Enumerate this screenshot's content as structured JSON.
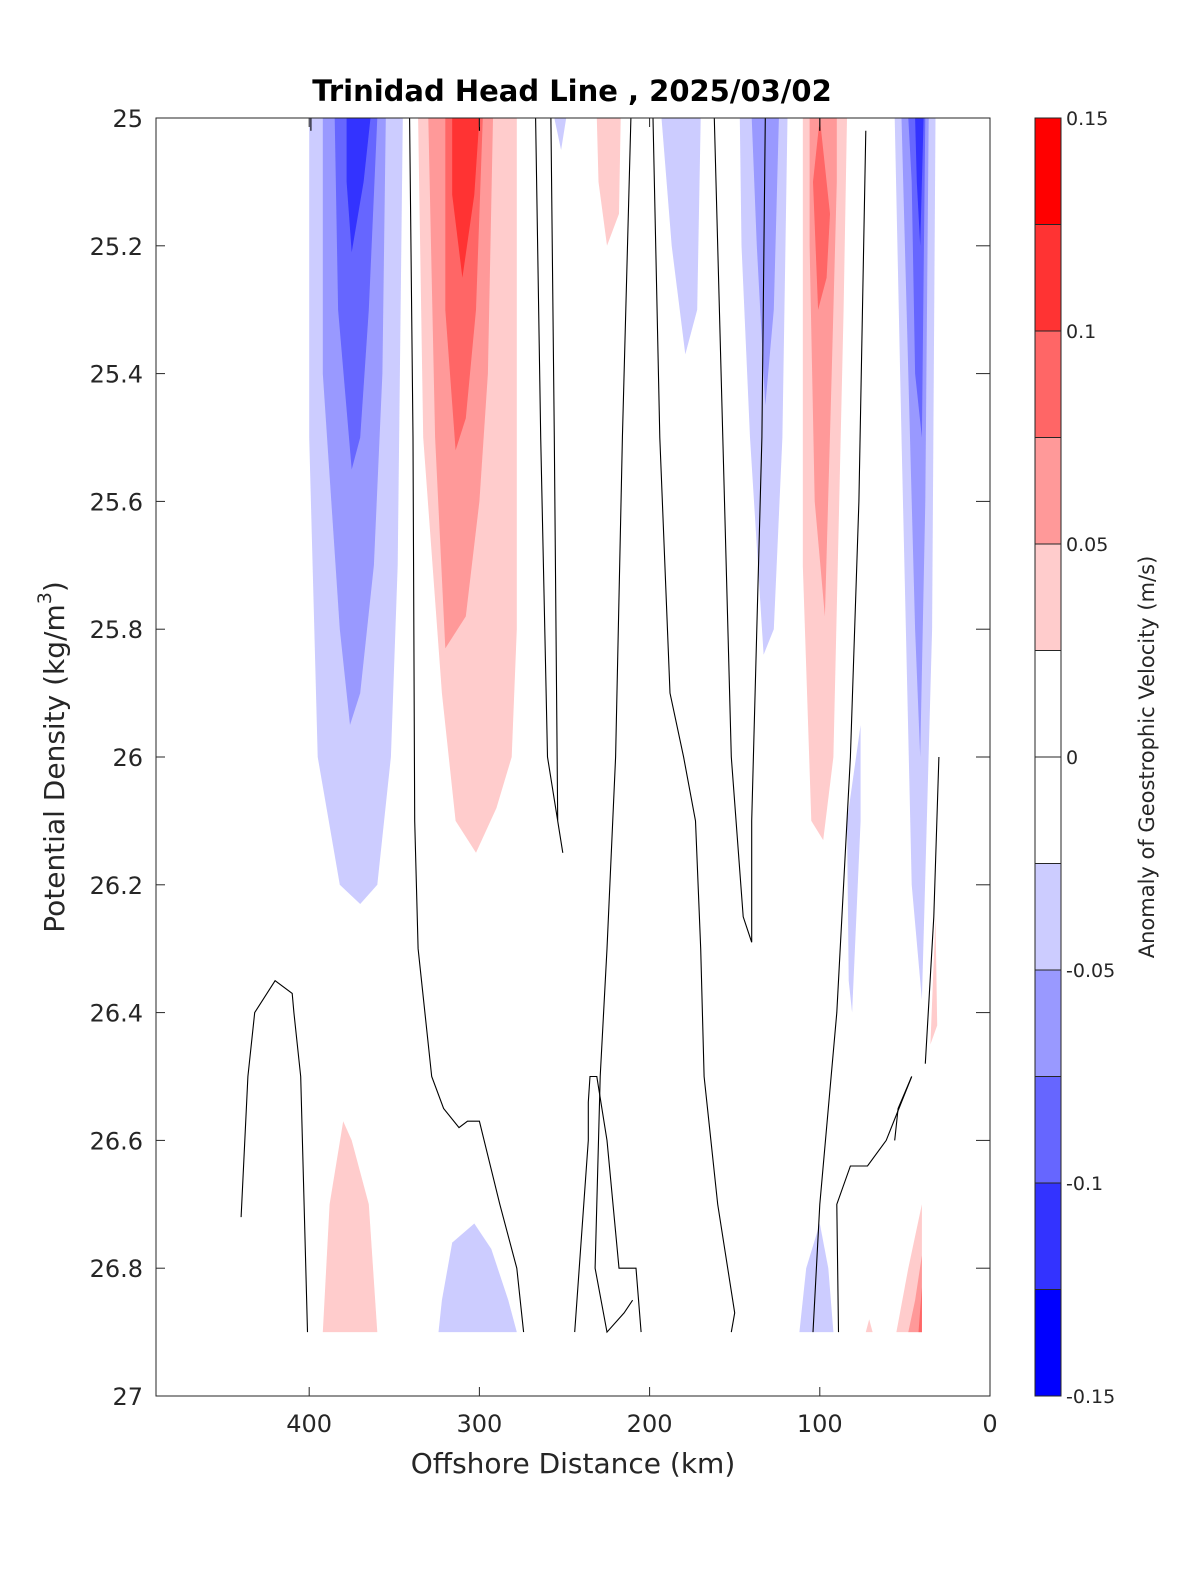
{
  "chart_data": {
    "type": "contourf",
    "title": "Trinidad Head Line , 2025/03/02",
    "xlabel": "Offshore Distance (km)",
    "ylabel": "Potential Density (kg/m³)",
    "ylabel_base": "Potential Density (kg/m",
    "ylabel_sup": "3",
    "ylabel_end": ")",
    "xlim": [
      490,
      0
    ],
    "ylim": [
      27,
      25
    ],
    "x_reversed": true,
    "y_reversed": true,
    "xticks": [
      400,
      300,
      200,
      100,
      0
    ],
    "xtick_labels": [
      "400",
      "300",
      "200",
      "100",
      "0"
    ],
    "yticks": [
      25,
      25.2,
      25.4,
      25.6,
      25.8,
      26,
      26.2,
      26.4,
      26.6,
      26.8,
      27
    ],
    "ytick_labels": [
      "25",
      "25.2",
      "25.4",
      "25.6",
      "25.8",
      "26",
      "26.2",
      "26.4",
      "26.6",
      "26.8",
      "27"
    ],
    "grid": false,
    "colorbar": {
      "label": "Anomaly of Geostrophic Velocity (m/s)",
      "clim": [
        -0.15,
        0.15
      ],
      "levels": [
        -0.15,
        -0.125,
        -0.1,
        -0.075,
        -0.05,
        -0.025,
        0,
        0.025,
        0.05,
        0.075,
        0.1,
        0.125,
        0.15
      ],
      "ticks": [
        0.15,
        0.1,
        0.05,
        0,
        -0.05,
        -0.1,
        -0.15
      ],
      "tick_labels": [
        "0.15",
        "0.1",
        "0.05",
        "0",
        "-0.05",
        "-0.1",
        "-0.15"
      ],
      "colors": [
        "#0000ff",
        "#3333ff",
        "#6666ff",
        "#9999ff",
        "#ccccff",
        "#ffffff",
        "#ffffff",
        "#ffcccc",
        "#ff9999",
        "#ff6666",
        "#ff3333",
        "#ff0000"
      ],
      "placement": "right"
    },
    "filled_regions": [
      {
        "level": -0.025,
        "color": "#ccccff",
        "pts": [
          [
            400,
            25
          ],
          [
            345,
            25
          ],
          [
            348,
            25.7
          ],
          [
            352,
            26
          ],
          [
            360,
            26.2
          ],
          [
            370,
            26.23
          ],
          [
            382,
            26.2
          ],
          [
            395,
            26
          ],
          [
            400,
            25.5
          ]
        ]
      },
      {
        "level": -0.05,
        "color": "#9999ff",
        "pts": [
          [
            392,
            25
          ],
          [
            355,
            25
          ],
          [
            357,
            25.4
          ],
          [
            362,
            25.7
          ],
          [
            370,
            25.9
          ],
          [
            376,
            25.95
          ],
          [
            382,
            25.8
          ],
          [
            392,
            25.4
          ]
        ]
      },
      {
        "level": -0.075,
        "color": "#6666ff",
        "pts": [
          [
            385,
            25
          ],
          [
            360,
            25
          ],
          [
            365,
            25.3
          ],
          [
            370,
            25.5
          ],
          [
            375,
            25.55
          ],
          [
            383,
            25.3
          ]
        ]
      },
      {
        "level": -0.1,
        "color": "#3333ff",
        "pts": [
          [
            378,
            25
          ],
          [
            364,
            25
          ],
          [
            368,
            25.1
          ],
          [
            375,
            25.21
          ],
          [
            378,
            25.1
          ]
        ]
      },
      {
        "level": 0.025,
        "color": "#ffcccc",
        "pts": [
          [
            336,
            25
          ],
          [
            278,
            25
          ],
          [
            278,
            25.8
          ],
          [
            281,
            26
          ],
          [
            290,
            26.08
          ],
          [
            302,
            26.15
          ],
          [
            314,
            26.1
          ],
          [
            322,
            25.9
          ],
          [
            333,
            25.5
          ]
        ]
      },
      {
        "level": 0.05,
        "color": "#ff9999",
        "pts": [
          [
            330,
            25
          ],
          [
            292,
            25
          ],
          [
            295,
            25.4
          ],
          [
            300,
            25.6
          ],
          [
            308,
            25.78
          ],
          [
            320,
            25.83
          ],
          [
            326,
            25.5
          ]
        ]
      },
      {
        "level": 0.075,
        "color": "#ff6666",
        "pts": [
          [
            320,
            25
          ],
          [
            298,
            25
          ],
          [
            302,
            25.3
          ],
          [
            308,
            25.47
          ],
          [
            314,
            25.52
          ],
          [
            320,
            25.3
          ]
        ]
      },
      {
        "level": 0.1,
        "color": "#ff3333",
        "pts": [
          [
            316,
            25
          ],
          [
            300,
            25
          ],
          [
            303,
            25.12
          ],
          [
            310,
            25.25
          ],
          [
            316,
            25.12
          ]
        ]
      },
      {
        "level": -0.025,
        "color": "#ccccff",
        "pts": [
          [
            256,
            25
          ],
          [
            249,
            25
          ],
          [
            252,
            25.05
          ]
        ]
      },
      {
        "level": 0.025,
        "color": "#ffcccc",
        "pts": [
          [
            231,
            25
          ],
          [
            217,
            25
          ],
          [
            218,
            25.15
          ],
          [
            225,
            25.2
          ],
          [
            230,
            25.1
          ]
        ]
      },
      {
        "level": -0.025,
        "color": "#ccccff",
        "pts": [
          [
            193,
            25
          ],
          [
            170,
            25
          ],
          [
            172,
            25.3
          ],
          [
            179,
            25.37
          ],
          [
            187,
            25.2
          ]
        ]
      },
      {
        "level": -0.025,
        "color": "#ccccff",
        "pts": [
          [
            147,
            25
          ],
          [
            119,
            25
          ],
          [
            122,
            25.5
          ],
          [
            127,
            25.8
          ],
          [
            133,
            25.84
          ],
          [
            141,
            25.5
          ],
          [
            146,
            25.2
          ]
        ]
      },
      {
        "level": -0.05,
        "color": "#9999ff",
        "pts": [
          [
            140,
            25
          ],
          [
            124,
            25
          ],
          [
            127,
            25.3
          ],
          [
            132,
            25.45
          ],
          [
            137,
            25.2
          ]
        ]
      },
      {
        "level": 0.025,
        "color": "#ffcccc",
        "pts": [
          [
            110,
            25
          ],
          [
            84,
            25
          ],
          [
            86,
            25.3
          ],
          [
            92,
            26
          ],
          [
            98,
            26.13
          ],
          [
            105,
            26.1
          ],
          [
            110,
            25.7
          ]
        ]
      },
      {
        "level": 0.05,
        "color": "#ff9999",
        "pts": [
          [
            106,
            25
          ],
          [
            90,
            25
          ],
          [
            90,
            25.1
          ],
          [
            93,
            25.4
          ],
          [
            97,
            25.78
          ],
          [
            103,
            25.6
          ],
          [
            106,
            25.2
          ]
        ]
      },
      {
        "level": 0.075,
        "color": "#ff6666",
        "pts": [
          [
            100,
            25
          ],
          [
            94,
            25.15
          ],
          [
            96,
            25.25
          ],
          [
            101,
            25.3
          ],
          [
            104,
            25.1
          ]
        ]
      },
      {
        "level": -0.025,
        "color": "#ccccff",
        "pts": [
          [
            76,
            25.95
          ],
          [
            84,
            26.1
          ],
          [
            83,
            26.35
          ],
          [
            81,
            26.4
          ],
          [
            76,
            26.1
          ]
        ]
      },
      {
        "level": -0.025,
        "color": "#ccccff",
        "pts": [
          [
            56,
            25
          ],
          [
            32,
            25
          ],
          [
            34,
            25.8
          ],
          [
            40,
            26.38
          ],
          [
            46,
            26.2
          ],
          [
            52,
            25.5
          ]
        ]
      },
      {
        "level": -0.05,
        "color": "#9999ff",
        "pts": [
          [
            52,
            25
          ],
          [
            36,
            25
          ],
          [
            38,
            25.6
          ],
          [
            41,
            26
          ],
          [
            44,
            25.8
          ],
          [
            49,
            25.3
          ]
        ]
      },
      {
        "level": -0.075,
        "color": "#6666ff",
        "pts": [
          [
            48,
            25
          ],
          [
            38,
            25
          ],
          [
            40,
            25.5
          ],
          [
            44,
            25.4
          ],
          [
            46,
            25.1
          ]
        ]
      },
      {
        "level": -0.1,
        "color": "#3333ff",
        "pts": [
          [
            44,
            25
          ],
          [
            39,
            25
          ],
          [
            41,
            25.2
          ],
          [
            43,
            25.1
          ]
        ]
      },
      {
        "level": 0.025,
        "color": "#ffcccc",
        "pts": [
          [
            32,
            26.25
          ],
          [
            35,
            26.45
          ],
          [
            31,
            26.42
          ]
        ]
      },
      {
        "level": 0.025,
        "color": "#ffcccc",
        "pts": [
          [
            392,
            26.9
          ],
          [
            360,
            26.9
          ],
          [
            365,
            26.7
          ],
          [
            375,
            26.6
          ],
          [
            380,
            26.57
          ],
          [
            388,
            26.7
          ]
        ]
      },
      {
        "level": -0.025,
        "color": "#ccccff",
        "pts": [
          [
            324,
            26.9
          ],
          [
            278,
            26.9
          ],
          [
            283,
            26.85
          ],
          [
            293,
            26.77
          ],
          [
            303,
            26.73
          ],
          [
            316,
            26.76
          ],
          [
            322,
            26.85
          ]
        ]
      },
      {
        "level": -0.025,
        "color": "#ccccff",
        "pts": [
          [
            112,
            26.9
          ],
          [
            92,
            26.9
          ],
          [
            95,
            26.8
          ],
          [
            100,
            26.73
          ],
          [
            108,
            26.8
          ]
        ]
      },
      {
        "level": 0.025,
        "color": "#ffcccc",
        "pts": [
          [
            55,
            26.9
          ],
          [
            40,
            26.9
          ],
          [
            40,
            26.7
          ],
          [
            48,
            26.8
          ]
        ]
      },
      {
        "level": 0.05,
        "color": "#ff9999",
        "pts": [
          [
            48,
            26.9
          ],
          [
            40,
            26.9
          ],
          [
            40,
            26.78
          ],
          [
            44,
            26.85
          ]
        ]
      },
      {
        "level": 0.075,
        "color": "#ff6666",
        "pts": [
          [
            42,
            26.9
          ],
          [
            40,
            26.9
          ],
          [
            40,
            26.83
          ]
        ]
      },
      {
        "level": 0.025,
        "color": "#ffcccc",
        "pts": [
          [
            73,
            26.9
          ],
          [
            69,
            26.9
          ],
          [
            71,
            26.88
          ]
        ]
      }
    ],
    "zero_contours": [
      [
        [
          399,
          25
        ],
        [
          399,
          25.02
        ]
      ],
      [
        [
          300,
          25
        ],
        [
          300,
          25.02
        ]
      ],
      [
        [
          100,
          25
        ],
        [
          100,
          25.02
        ]
      ],
      [
        [
          341,
          25
        ],
        [
          339,
          25.5
        ],
        [
          338,
          26.1
        ],
        [
          336,
          26.3
        ],
        [
          328,
          26.5
        ],
        [
          321,
          26.55
        ],
        [
          312,
          26.58
        ],
        [
          307,
          26.57
        ],
        [
          300,
          26.57
        ],
        [
          288,
          26.7
        ],
        [
          278,
          26.8
        ],
        [
          274,
          26.9
        ]
      ],
      [
        [
          267,
          25
        ],
        [
          264,
          25.5
        ],
        [
          260,
          26
        ],
        [
          251,
          26.15
        ],
        [
          254,
          26.1
        ],
        [
          256,
          25.5
        ],
        [
          258,
          25
        ]
      ],
      [
        [
          211,
          25
        ],
        [
          216,
          25.5
        ],
        [
          220,
          26
        ],
        [
          225,
          26.3
        ],
        [
          229,
          26.5
        ],
        [
          232,
          26.8
        ],
        [
          225,
          26.9
        ],
        [
          215,
          26.87
        ],
        [
          210,
          26.85
        ]
      ],
      [
        [
          198,
          25
        ],
        [
          194,
          25.5
        ],
        [
          188,
          25.9
        ],
        [
          180,
          26
        ],
        [
          173,
          26.1
        ],
        [
          170,
          26.3
        ],
        [
          168,
          26.5
        ],
        [
          160,
          26.7
        ],
        [
          150,
          26.87
        ],
        [
          152,
          26.9
        ]
      ],
      [
        [
          162,
          25
        ],
        [
          157,
          25.5
        ],
        [
          152,
          26
        ],
        [
          145,
          26.25
        ],
        [
          140,
          26.29
        ],
        [
          140,
          26.1
        ],
        [
          137,
          25.8
        ],
        [
          134,
          25.5
        ],
        [
          132,
          25
        ]
      ],
      [
        [
          401,
          26.9
        ],
        [
          405,
          26.5
        ],
        [
          409,
          26.4
        ],
        [
          410,
          26.37
        ],
        [
          420,
          26.35
        ],
        [
          432,
          26.4
        ],
        [
          436,
          26.5
        ],
        [
          440,
          26.72
        ]
      ],
      [
        [
          205,
          26.9
        ],
        [
          208,
          26.8
        ],
        [
          218,
          26.8
        ],
        [
          225,
          26.6
        ],
        [
          231,
          26.5
        ],
        [
          235,
          26.5
        ],
        [
          236,
          26.54
        ],
        [
          236,
          26.6
        ],
        [
          244,
          26.9
        ]
      ],
      [
        [
          73,
          25.02
        ],
        [
          77,
          25.6
        ],
        [
          82,
          26
        ],
        [
          90,
          26.4
        ],
        [
          100,
          26.7
        ],
        [
          104,
          26.9
        ]
      ],
      [
        [
          89,
          26.9
        ],
        [
          90,
          26.7
        ],
        [
          82,
          26.64
        ],
        [
          72,
          26.64
        ],
        [
          61,
          26.6
        ],
        [
          46,
          26.5
        ]
      ],
      [
        [
          46,
          26.5
        ],
        [
          54,
          26.55
        ],
        [
          56,
          26.6
        ]
      ],
      [
        [
          30,
          26
        ],
        [
          33,
          26.25
        ],
        [
          38,
          26.48
        ]
      ]
    ]
  }
}
